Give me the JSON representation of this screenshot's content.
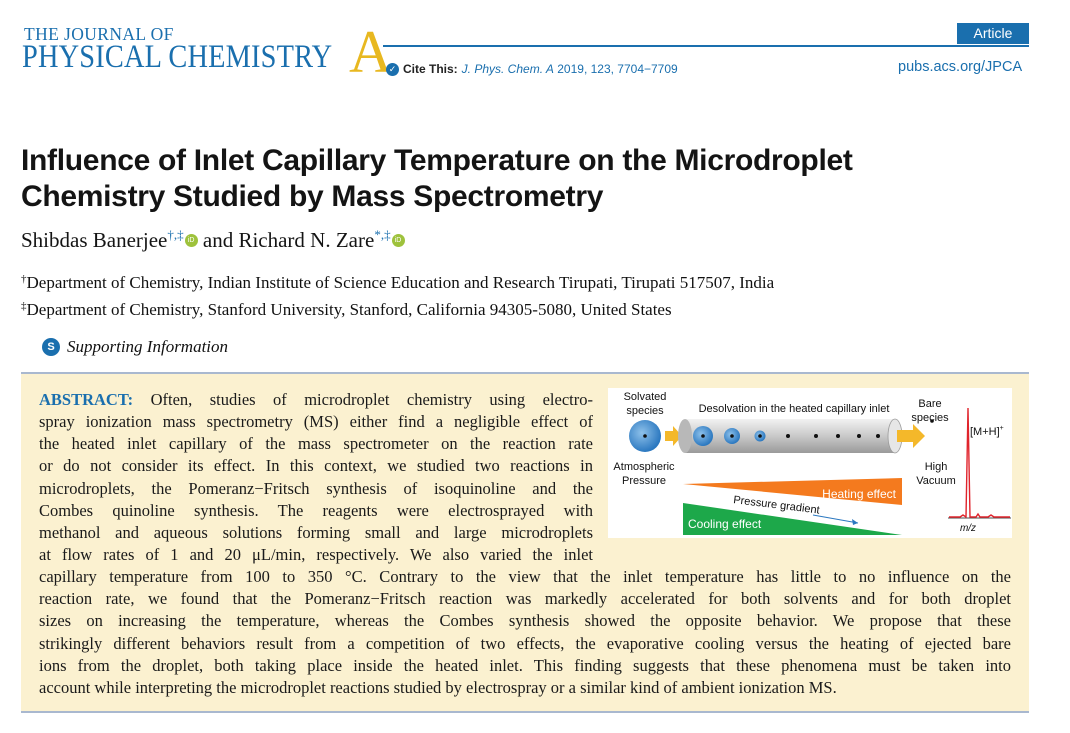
{
  "header": {
    "journal_small": "THE JOURNAL OF",
    "journal_big": "PHYSICAL CHEMISTRY",
    "journal_letter": "A",
    "article_type": "Article",
    "cite_label": "Cite This:",
    "cite_journal": "J. Phys. Chem. A",
    "cite_details": " 2019, 123, 7704−7709",
    "url": "pubs.acs.org/JPCA"
  },
  "article": {
    "title_line1": "Influence of Inlet Capillary Temperature on the Microdroplet",
    "title_line2": "Chemistry Studied by Mass Spectrometry",
    "authors": [
      {
        "name": "Shibdas Banerjee",
        "marks": "†,‡"
      },
      {
        "name": "Richard N. Zare",
        "marks": "*,‡"
      }
    ],
    "author_join": " and ",
    "affiliations": [
      {
        "mark": "†",
        "text": "Department of Chemistry, Indian Institute of Science Education and Research Tirupati, Tirupati 517507, India"
      },
      {
        "mark": "‡",
        "text": "Department of Chemistry, Stanford University, Stanford, California 94305-5080, United States"
      }
    ],
    "supporting_info": "Supporting Information"
  },
  "abstract": {
    "label": "ABSTRACT:",
    "lines": [
      " Often, studies of microdroplet chemistry using electro-",
      "spray ionization mass spectrometry (MS) either find a negligible effect of",
      "the heated inlet capillary of the mass spectrometer on the reaction rate",
      "or do not consider its effect. In this context, we studied two reactions in",
      "microdroplets, the Pomeranz−Fritsch synthesis of isoquinoline and the",
      "Combes quinoline synthesis. The reagents were electrosprayed with",
      "methanol and aqueous solutions forming small and large microdroplets",
      "at flow rates of 1 and 20 μL/min, respectively. We also varied the inlet",
      "capillary temperature from 100 to 350 °C. Contrary to the view that the inlet temperature has little to no influence on the",
      "reaction rate, we found that the Pomeranz−Fritsch reaction was markedly accelerated for both solvents and for both droplet",
      "sizes on increasing the temperature, whereas the Combes synthesis showed the opposite behavior. We propose that these",
      "strikingly different behaviors result from a competition of two effects, the evaporative cooling versus the heating of ejected bare",
      "ions from the droplet, both taking place inside the heated inlet. This finding suggests that these phenomena must be taken into",
      "account while interpreting the microdroplet reactions studied by electrospray or a similar kind of ambient ionization MS."
    ]
  },
  "figure": {
    "solvated_1": "Solvated",
    "solvated_2": "species",
    "desolvation": "Desolvation in the heated capillary inlet",
    "bare_1": "Bare",
    "bare_2": "species",
    "ion_label": "[M+H]",
    "ion_charge": "+",
    "atm_1": "Atmospheric",
    "atm_2": "Pressure",
    "high_1": "High",
    "high_2": "Vacuum",
    "heating": "Heating effect",
    "pressure": "Pressure gradient",
    "cooling": "Cooling effect",
    "mz": "m/z",
    "colors": {
      "heating": "#f47a1e",
      "cooling": "#1da84a",
      "arrow": "#f4b82a",
      "spectrum": "#e0242c",
      "droplet": "#2b78c0",
      "capillary": "#c9c9c9"
    }
  }
}
